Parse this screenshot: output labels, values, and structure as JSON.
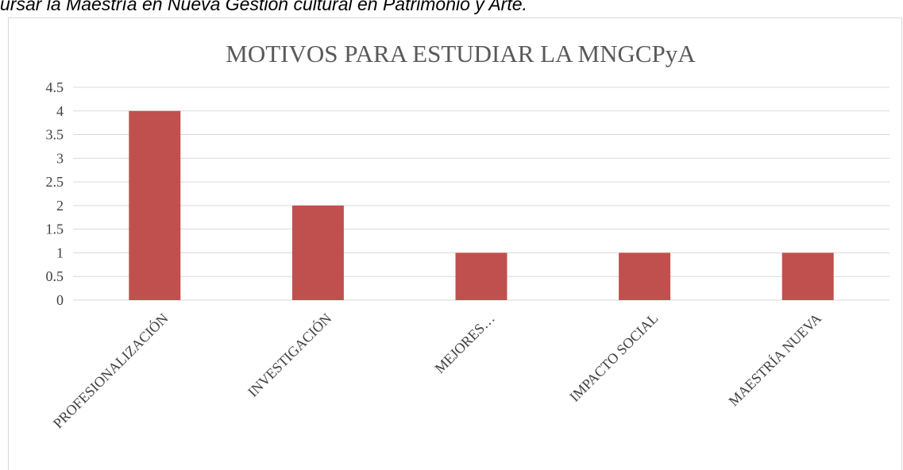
{
  "caption": "ursar la Maestría en Nueva Gestión cultural en Patrimonio y Arte.",
  "chart_data": {
    "type": "bar",
    "title": "MOTIVOS PARA ESTUDIAR LA MNGCPyA",
    "categories": [
      "PROFESIONALIZACIÓN",
      "INVESTIGACIÓN",
      "MEJORES…",
      "IMPACTO SOCIAL",
      "MAESTRÍA NUEVA"
    ],
    "values": [
      4,
      2,
      1,
      1,
      1
    ],
    "color": "#c0504d",
    "ylim": [
      0,
      4.5
    ],
    "yticks": [
      0,
      0.5,
      1,
      1.5,
      2,
      2.5,
      3,
      3.5,
      4,
      4.5
    ],
    "grid": true
  }
}
